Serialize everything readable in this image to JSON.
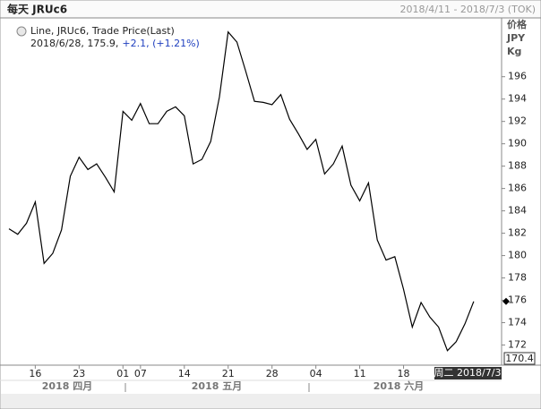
{
  "chart_data": {
    "type": "line",
    "title": "每天 JRUc6",
    "date_range": "2018/4/11 - 2018/7/3 (TOK)",
    "legend": {
      "series": "Line, JRUc6, Trade Price(Last)",
      "info": "2018/6/28, 175.9,",
      "change": "+2.1, (+1.21%)",
      "change_color": "#1f3fbf"
    },
    "y_axis_title": [
      "价格",
      "JPY",
      "Kg"
    ],
    "categories": [
      null,
      null,
      null,
      "16",
      null,
      null,
      null,
      null,
      "23",
      null,
      null,
      null,
      null,
      "01",
      null,
      "07",
      null,
      null,
      null,
      null,
      "14",
      null,
      null,
      null,
      null,
      "21",
      null,
      null,
      null,
      null,
      "28",
      null,
      null,
      null,
      null,
      "04",
      null,
      null,
      null,
      null,
      "11",
      null,
      null,
      null,
      null,
      "18",
      null,
      null,
      null,
      null,
      null,
      null,
      null,
      null
    ],
    "months": [
      "2018 四月",
      "2018 五月",
      "2018 六月"
    ],
    "series": [
      {
        "name": "JRUc6",
        "color": "#000000",
        "values": [
          182.4,
          181.9,
          182.9,
          184.8,
          179.3,
          180.2,
          182.3,
          187.1,
          188.8,
          187.7,
          188.2,
          187.0,
          185.7,
          192.9,
          192.1,
          193.6,
          191.8,
          191.8,
          192.9,
          193.3,
          192.5,
          188.2,
          188.6,
          190.2,
          194.2,
          200.0,
          199.1,
          196.5,
          193.8,
          193.7,
          193.5,
          194.4,
          192.2,
          190.9,
          189.5,
          190.4,
          187.3,
          188.2,
          189.8,
          186.3,
          184.9,
          186.5,
          181.4,
          179.6,
          179.9,
          177.0,
          173.6,
          175.8,
          174.5,
          173.6,
          171.5,
          172.3,
          173.9,
          175.9
        ]
      }
    ],
    "ylim": [
      170.2,
      201.1
    ],
    "yticks": [
      172,
      174,
      176,
      178,
      180,
      182,
      184,
      186,
      188,
      190,
      192,
      194,
      196
    ],
    "cursor": {
      "date": "周二 2018/7/3",
      "value": "170.4"
    },
    "grid": false
  }
}
